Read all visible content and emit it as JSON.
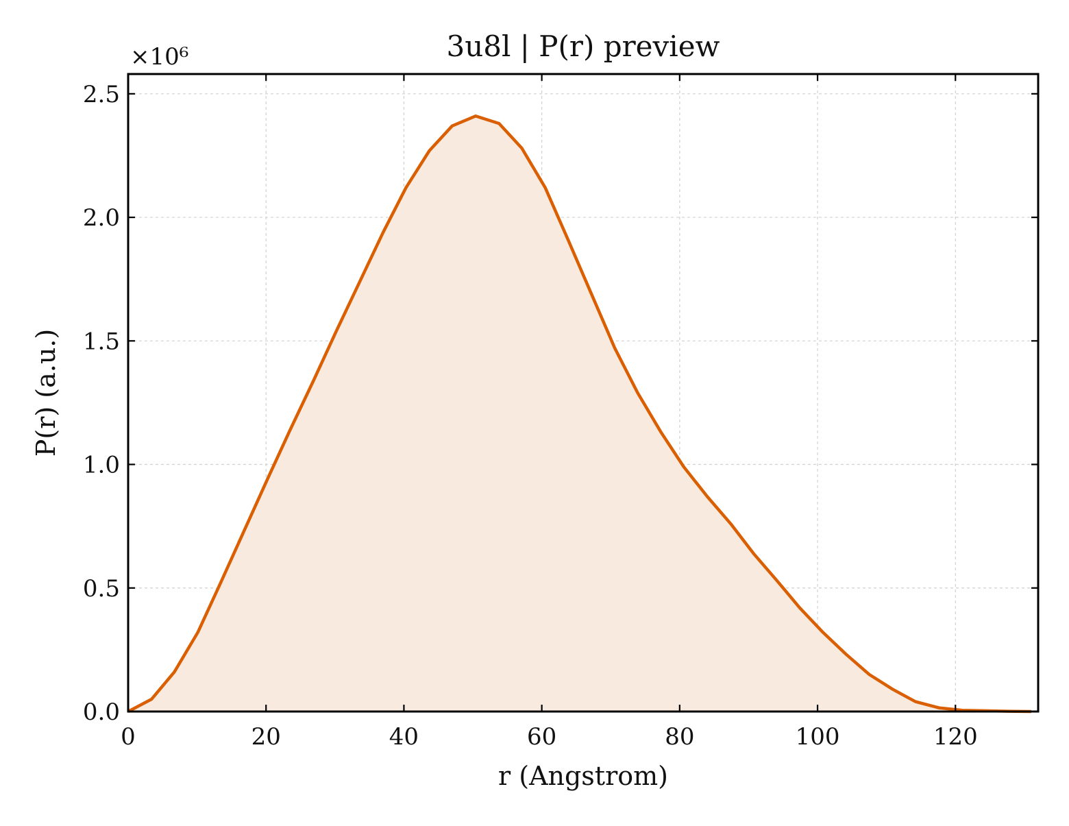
{
  "chart_data": {
    "type": "area",
    "title": "3u8l | P(r) preview",
    "xlabel": "r (Angstrom)",
    "ylabel": "P(r) (a.u.)",
    "y_multiplier_label": "×10⁶",
    "xlim": [
      0,
      132
    ],
    "ylim": [
      0,
      2.58
    ],
    "y_scale_factor": 1000000,
    "xticks": [
      0,
      20,
      40,
      60,
      80,
      100,
      120
    ],
    "xtick_labels": [
      "0",
      "20",
      "40",
      "60",
      "80",
      "100",
      "120"
    ],
    "yticks": [
      0.0,
      0.5,
      1.0,
      1.5,
      2.0,
      2.5
    ],
    "ytick_labels": [
      "0.0",
      "0.5",
      "1.0",
      "1.5",
      "2.0",
      "2.5"
    ],
    "grid": true,
    "line_color": "#d95f02",
    "fill_color": "#f9eadf",
    "series": [
      {
        "x": [
          0,
          3.4,
          6.7,
          10.1,
          13.4,
          16.8,
          20.2,
          23.5,
          26.9,
          30.2,
          33.6,
          37.0,
          40.3,
          43.7,
          47.0,
          50.4,
          53.8,
          57.1,
          60.5,
          63.8,
          67.2,
          70.6,
          73.9,
          77.3,
          80.6,
          84.0,
          87.4,
          90.7,
          94.1,
          97.4,
          100.8,
          104.2,
          107.5,
          110.9,
          114.2,
          117.6,
          121.0,
          124.3,
          127.7,
          131.0
        ],
        "y": [
          0.0,
          0.05,
          0.16,
          0.32,
          0.52,
          0.73,
          0.94,
          1.14,
          1.34,
          1.54,
          1.74,
          1.94,
          2.12,
          2.27,
          2.37,
          2.41,
          2.38,
          2.28,
          2.12,
          1.91,
          1.69,
          1.47,
          1.29,
          1.13,
          0.99,
          0.87,
          0.76,
          0.64,
          0.53,
          0.42,
          0.32,
          0.23,
          0.15,
          0.09,
          0.04,
          0.015,
          0.005,
          0.003,
          0.001,
          0.0
        ]
      }
    ]
  }
}
